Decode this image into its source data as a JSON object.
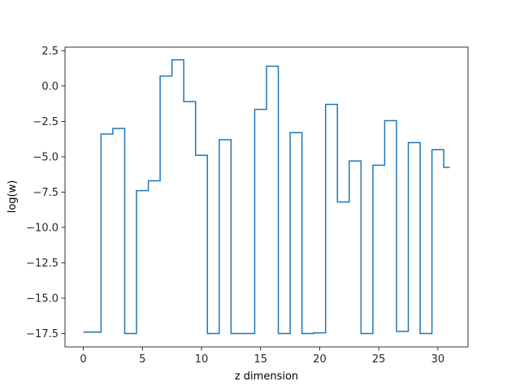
{
  "chart_data": {
    "type": "line",
    "drawstyle": "steps-mid",
    "xlabel": "z dimension",
    "ylabel": "log(w)",
    "xlim": [
      -1.55,
      32.55
    ],
    "ylim": [
      -18.45,
      2.75
    ],
    "xticks": [
      0,
      5,
      10,
      15,
      20,
      25,
      30
    ],
    "xtick_labels": [
      "0",
      "5",
      "10",
      "15",
      "20",
      "25",
      "30"
    ],
    "yticks": [
      2.5,
      0.0,
      -2.5,
      -5.0,
      -7.5,
      -10.0,
      -12.5,
      -15.0,
      -17.5
    ],
    "ytick_labels": [
      "2.5",
      "0.0",
      "−2.5",
      "−5.0",
      "−7.5",
      "−10.0",
      "−12.5",
      "−15.0",
      "−17.5"
    ],
    "grid": false,
    "legend": false,
    "series": [
      {
        "color": "#1f77b4",
        "x": [
          0,
          1,
          2,
          3,
          4,
          5,
          6,
          7,
          8,
          9,
          10,
          11,
          12,
          13,
          14,
          15,
          16,
          17,
          18,
          19,
          20,
          21,
          22,
          23,
          24,
          25,
          26,
          27,
          28,
          29,
          30,
          31
        ],
        "y": [
          -17.4,
          -17.4,
          -3.4,
          -3.0,
          -17.5,
          -7.4,
          -6.7,
          0.7,
          1.85,
          -1.1,
          -4.9,
          -17.5,
          -3.8,
          -17.5,
          -17.5,
          -1.65,
          1.4,
          -17.5,
          -3.3,
          -17.5,
          -17.45,
          -1.3,
          -8.2,
          -5.3,
          -17.5,
          -5.6,
          -2.45,
          -17.35,
          -4.0,
          -17.5,
          -4.5,
          -5.75
        ]
      }
    ]
  }
}
